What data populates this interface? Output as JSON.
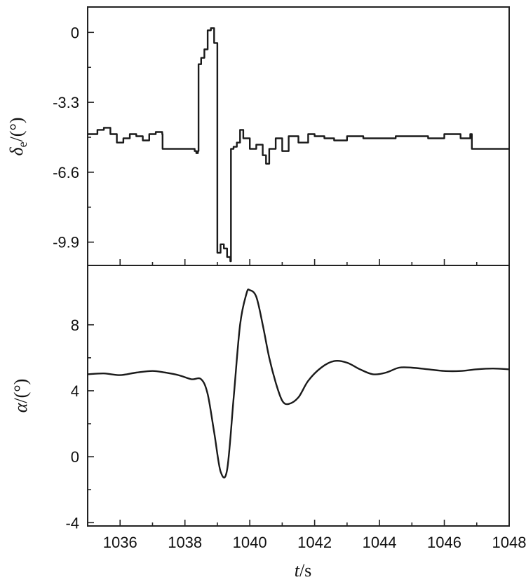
{
  "chart_data": [
    {
      "panel": "top",
      "type": "line",
      "ylabel": {
        "symbol": "δ",
        "sub": "e",
        "unit": "/(°)"
      },
      "ylim": [
        -11.0,
        1.2
      ],
      "yticks": [
        0,
        -3.3,
        -6.6,
        -9.9
      ],
      "ytick_labels": [
        "0",
        "-3.3",
        "-6.6",
        "-9.9"
      ],
      "xlim": [
        1035.0,
        1048.0
      ],
      "grid": false,
      "series": [
        {
          "x": [
            1035.0,
            1035.3,
            1035.5,
            1035.7,
            1035.9,
            1036.1,
            1036.3,
            1036.5,
            1036.7,
            1036.9,
            1037.1,
            1037.3,
            1037.31,
            1038.2,
            1038.3,
            1038.35,
            1038.4,
            1038.42,
            1038.5,
            1038.6,
            1038.7,
            1038.8,
            1038.9,
            1038.95,
            1039.0,
            1039.05,
            1039.1,
            1039.2,
            1039.3,
            1039.4,
            1039.42,
            1039.5,
            1039.6,
            1039.7,
            1039.8,
            1040.0,
            1040.2,
            1040.4,
            1040.5,
            1040.6,
            1040.8,
            1041.0,
            1041.2,
            1041.5,
            1041.8,
            1042.0,
            1042.3,
            1042.6,
            1043.0,
            1043.5,
            1044.0,
            1044.5,
            1045.0,
            1045.5,
            1046.0,
            1046.5,
            1046.8,
            1046.85,
            1047.5,
            1048.0
          ],
          "y": [
            -4.8,
            -4.6,
            -4.5,
            -4.8,
            -5.2,
            -5.0,
            -4.8,
            -4.9,
            -5.1,
            -4.8,
            -4.7,
            -4.8,
            -5.5,
            -5.5,
            -5.6,
            -5.7,
            -5.6,
            -1.5,
            -1.2,
            -0.8,
            0.1,
            0.2,
            -0.5,
            -0.5,
            -10.4,
            -10.4,
            -10.0,
            -10.2,
            -10.6,
            -10.8,
            -5.5,
            -5.4,
            -5.2,
            -4.6,
            -5.0,
            -5.5,
            -5.3,
            -5.8,
            -6.2,
            -5.5,
            -5.0,
            -5.6,
            -4.9,
            -5.2,
            -4.8,
            -4.9,
            -5.0,
            -5.1,
            -4.9,
            -5.0,
            -5.0,
            -4.9,
            -4.9,
            -5.0,
            -4.8,
            -5.0,
            -4.8,
            -5.5,
            -5.5,
            -5.5
          ]
        }
      ]
    },
    {
      "panel": "bottom",
      "type": "line",
      "ylabel": {
        "symbol": "α",
        "unit": "/(°)"
      },
      "xlabel": {
        "symbol": "t",
        "unit": "/s"
      },
      "ylim": [
        -4.2,
        11.6
      ],
      "yticks": [
        8,
        4,
        0,
        -4
      ],
      "ytick_labels": [
        "8",
        "4",
        "0",
        "-4"
      ],
      "xlim": [
        1035.0,
        1048.0
      ],
      "xticks": [
        1036,
        1038,
        1040,
        1042,
        1044,
        1046,
        1048
      ],
      "xtick_labels": [
        "1036",
        "1038",
        "1040",
        "1042",
        "1044",
        "1046",
        "1048"
      ],
      "grid": false,
      "series": [
        {
          "x": [
            1035.0,
            1035.5,
            1036.0,
            1036.5,
            1037.0,
            1037.4,
            1037.8,
            1038.2,
            1038.5,
            1038.7,
            1038.9,
            1039.1,
            1039.3,
            1039.5,
            1039.7,
            1039.9,
            1040.0,
            1040.2,
            1040.4,
            1040.6,
            1040.8,
            1041.0,
            1041.2,
            1041.5,
            1041.8,
            1042.2,
            1042.6,
            1043.0,
            1043.4,
            1043.8,
            1044.2,
            1044.6,
            1045.0,
            1045.5,
            1046.0,
            1046.5,
            1047.0,
            1047.5,
            1048.0
          ],
          "y": [
            5.0,
            5.05,
            4.95,
            5.1,
            5.2,
            5.1,
            4.95,
            4.7,
            4.7,
            3.8,
            1.5,
            -0.9,
            -0.8,
            3.5,
            8.0,
            9.9,
            10.1,
            9.7,
            8.0,
            6.0,
            4.5,
            3.4,
            3.2,
            3.6,
            4.6,
            5.4,
            5.8,
            5.7,
            5.3,
            5.0,
            5.1,
            5.4,
            5.4,
            5.3,
            5.2,
            5.2,
            5.3,
            5.35,
            5.3
          ]
        }
      ]
    }
  ]
}
